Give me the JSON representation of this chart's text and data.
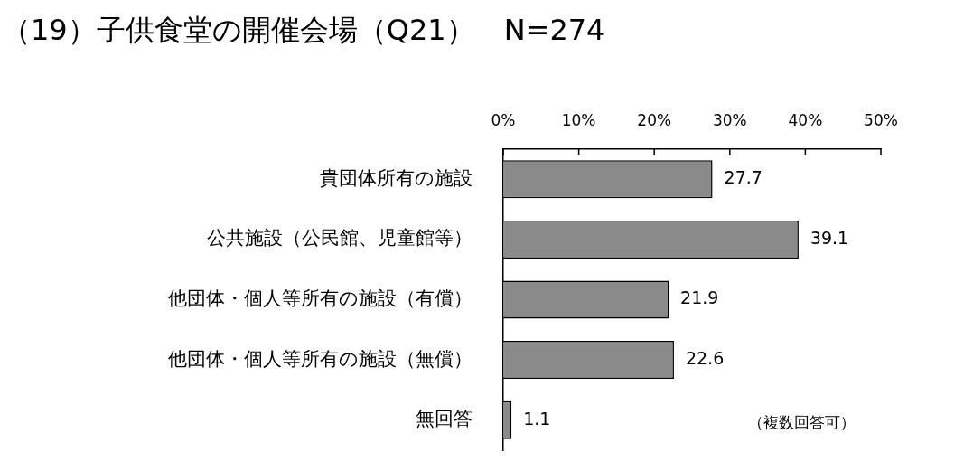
{
  "chart_data": {
    "type": "bar",
    "orientation": "horizontal",
    "title": "（19）子供食堂の開催会場（Q21）　N=274",
    "categories": [
      "貴団体所有の施設",
      "公共施設（公民館、児童館等）",
      "他団体・個人等所有の施設（有償）",
      "他団体・個人等所有の施設（無償）",
      "無回答"
    ],
    "values": [
      27.7,
      39.1,
      21.9,
      22.6,
      1.1
    ],
    "color": "#8a8a8a",
    "xlim": [
      0,
      50
    ],
    "xticks": [
      {
        "value": 0,
        "label": "0%"
      },
      {
        "value": 10,
        "label": "10%"
      },
      {
        "value": 20,
        "label": "20%"
      },
      {
        "value": 30,
        "label": "30%"
      },
      {
        "value": 40,
        "label": "40%"
      },
      {
        "value": 50,
        "label": "50%"
      }
    ],
    "data_labels": true,
    "annotations": [
      "（複数回答可）"
    ]
  }
}
